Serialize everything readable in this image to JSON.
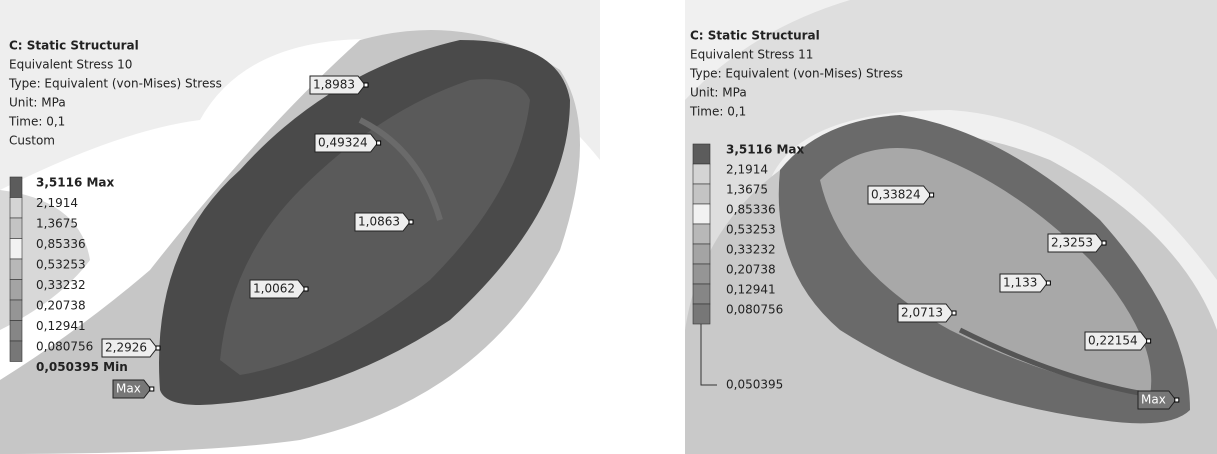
{
  "panels": [
    {
      "header": {
        "title": "C: Static Structural",
        "result": "Equivalent Stress 10",
        "type": "Type: Equivalent (von-Mises) Stress",
        "unit": "Unit: MPa",
        "time": "Time: 0,1",
        "extra": "Custom"
      },
      "legend": [
        "3,5116 Max",
        "2,1914",
        "1,3675",
        "0,85336",
        "0,53253",
        "0,33232",
        "0,20738",
        "0,12941",
        "0,080756",
        "0,050395 Min"
      ],
      "probes": [
        "1,8983",
        "0,49324",
        "1,0863",
        "1,0062",
        "2,2926",
        "Max"
      ]
    },
    {
      "header": {
        "title": "C: Static Structural",
        "result": "Equivalent Stress 11",
        "type": "Type: Equivalent (von-Mises) Stress",
        "unit": "Unit: MPa",
        "time": "Time: 0,1"
      },
      "legend": [
        "3,5116 Max",
        "2,1914",
        "1,3675",
        "0,85336",
        "0,53253",
        "0,33232",
        "0,20738",
        "0,12941",
        "0,080756",
        "0,050395"
      ],
      "probes": [
        "0,33824",
        "2,3253",
        "1,133",
        "2,0713",
        "0,22154",
        "Max"
      ]
    }
  ]
}
